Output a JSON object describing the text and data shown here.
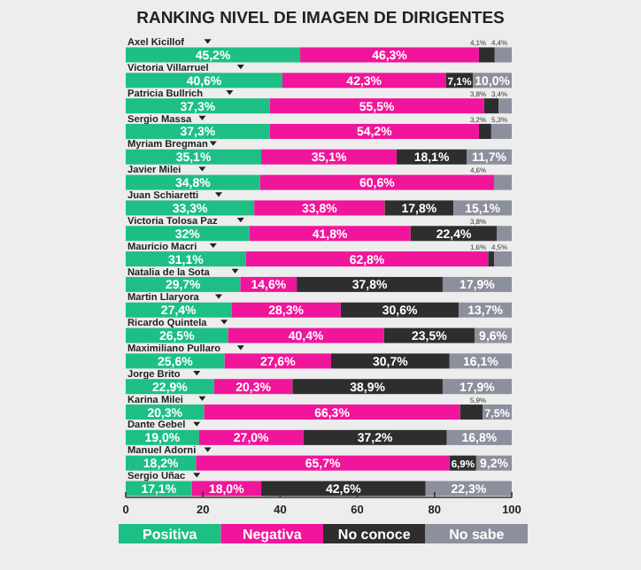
{
  "chart_data": {
    "type": "bar",
    "orientation": "horizontal",
    "stacked": true,
    "title": "RANKING NIVEL DE IMAGEN DE DIRIGENTES",
    "categories": [
      "Axel Kicillof",
      "Victoria Villarruel",
      "Patricia Bullrich",
      "Sergio Massa",
      "Myriam Bregman",
      "Javier Milei",
      "Juan Schiaretti",
      "Victoria Tolosa Paz",
      "Mauricio Macri",
      "Natalia de la Sota",
      "Martin Llaryora",
      "Ricardo Quintela",
      "Maximiliano Pullaro",
      "Jorge Brito",
      "Karina Milei",
      "Dante Gebel",
      "Manuel Adorni",
      "Sergio Uñac"
    ],
    "series": [
      {
        "name": "Positiva",
        "color": "#1dbf85",
        "values": [
          45.2,
          40.6,
          37.3,
          37.3,
          35.1,
          34.8,
          33.3,
          32,
          31.1,
          29.7,
          27.4,
          26.5,
          25.6,
          22.9,
          20.3,
          19.0,
          18.2,
          17.1
        ],
        "value_labels": [
          "45,2%",
          "40,6%",
          "37,3%",
          "37,3%",
          "35,1%",
          "34,8%",
          "33,3%",
          "32%",
          "31,1%",
          "29,7%",
          "27,4%",
          "26,5%",
          "25,6%",
          "22,9%",
          "20,3%",
          "19,0%",
          "18,2%",
          "17,1%"
        ]
      },
      {
        "name": "Negativa",
        "color": "#f0159a",
        "values": [
          46.3,
          42.3,
          55.5,
          54.2,
          35.1,
          60.6,
          33.8,
          41.8,
          62.8,
          14.6,
          28.3,
          40.4,
          27.6,
          20.3,
          66.3,
          27.0,
          65.7,
          18.0
        ],
        "value_labels": [
          "46,3%",
          "42,3%",
          "55,5%",
          "54,2%",
          "35,1%",
          "60,6%",
          "33,8%",
          "41,8%",
          "62,8%",
          "14,6%",
          "28,3%",
          "40,4%",
          "27,6%",
          "20,3%",
          "66,3%",
          "27,0%",
          "65,7%",
          "18,0%"
        ]
      },
      {
        "name": "No conoce",
        "color": "#2e2e2e",
        "values": [
          4.1,
          7.1,
          3.8,
          3.2,
          18.1,
          null,
          17.8,
          22.4,
          1.6,
          37.8,
          30.6,
          23.5,
          30.7,
          38.9,
          5.9,
          37.2,
          6.9,
          42.6
        ],
        "value_labels": [
          "4,1%",
          "7,1%",
          "3,8%",
          "3,2%",
          "18,1%",
          null,
          "17,8%",
          "22,4%",
          "1,6%",
          "37,8%",
          "30,6%",
          "23,5%",
          "30,7%",
          "38,9%",
          "5,9%",
          "37,2%",
          "6,9%",
          "42,6%"
        ]
      },
      {
        "name": "No sabe",
        "color": "#8c8f9c",
        "values": [
          4.4,
          10.0,
          3.4,
          5.3,
          11.7,
          4.6,
          15.1,
          3.8,
          4.5,
          17.9,
          13.7,
          9.6,
          16.1,
          17.9,
          7.5,
          16.8,
          9.2,
          22.3
        ],
        "value_labels": [
          "4,4%",
          "10,0%",
          "3,4%",
          "5,3%",
          "11,7%",
          "4,6%",
          "15,1%",
          "3,8%",
          "4,5%",
          "17,9%",
          "13,7%",
          "9,6%",
          "16,1%",
          "17,9%",
          "7,5%",
          "16,8%",
          "9,2%",
          "22,3%"
        ]
      }
    ],
    "xlim": [
      0,
      100
    ],
    "xticks": [
      0,
      20,
      40,
      60,
      80,
      100
    ],
    "legend": "bottom",
    "grid": false
  }
}
